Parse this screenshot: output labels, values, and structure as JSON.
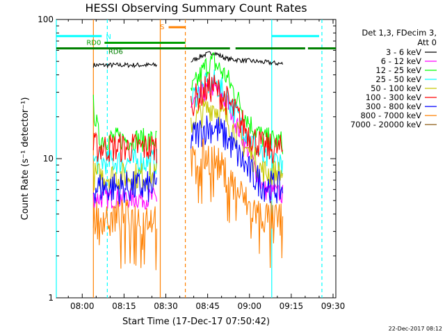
{
  "chart_data": {
    "type": "line",
    "title": "HESSI Observing Summary Count Rates",
    "xlabel": "Start Time (17-Dec-17 07:50:42)",
    "ylabel": "Count Rate (s⁻¹ detector⁻¹)",
    "y_scale": "log",
    "ylim": [
      1,
      100
    ],
    "xlim": [
      "07:50:42",
      "09:31:00"
    ],
    "x_ticks": [
      "08:00",
      "08:15",
      "08:30",
      "08:45",
      "09:00",
      "09:15",
      "09:30"
    ],
    "y_ticks": [
      "1",
      "10",
      "100"
    ],
    "legend": {
      "placement": "right",
      "header": "Det 1,3, FDecim 3,",
      "header2": "Att 0",
      "entries": [
        {
          "label": "3 - 6 keV",
          "color": "#000000"
        },
        {
          "label": "6 - 12 keV",
          "color": "#ff00ff"
        },
        {
          "label": "12 - 25 keV",
          "color": "#00ff00"
        },
        {
          "label": "25 - 50 keV",
          "color": "#00ffff"
        },
        {
          "label": "50 - 100 keV",
          "color": "#c8c800"
        },
        {
          "label": "100 - 300 keV",
          "color": "#ff0000"
        },
        {
          "label": "300 - 800 keV",
          "color": "#0000ff"
        },
        {
          "label": "800 - 7000 keV",
          "color": "#ff8000"
        },
        {
          "label": "7000 - 20000 keV",
          "color": "#8b5a14"
        }
      ]
    },
    "series": [
      {
        "name": "3 - 6 keV",
        "color": "#000000",
        "segments": [
          {
            "x": [
              "08:04",
              "08:27"
            ],
            "y": [
              47,
              47
            ]
          },
          {
            "x": [
              "08:39",
              "08:43",
              "08:47",
              "08:52",
              "09:12"
            ],
            "y": [
              50,
              55,
              58,
              52,
              48
            ]
          }
        ]
      },
      {
        "name": "6 - 12 keV",
        "color": "#ff00ff",
        "segments": [
          {
            "x": [
              "08:04",
              "08:27"
            ],
            "y": [
              5.2,
              5.2
            ]
          },
          {
            "x": [
              "08:39",
              "08:44",
              "08:47",
              "08:52",
              "09:00",
              "09:05",
              "09:12"
            ],
            "y": [
              24,
              30,
              33,
              25,
              11,
              6,
              5.5
            ]
          }
        ]
      },
      {
        "name": "12 - 25 keV",
        "color": "#00ff00",
        "segments": [
          {
            "x": [
              "08:04",
              "08:06",
              "08:27"
            ],
            "y": [
              24,
              14,
              13.5
            ]
          },
          {
            "x": [
              "08:39",
              "08:44",
              "08:47",
              "08:52",
              "09:00",
              "09:05",
              "09:12"
            ],
            "y": [
              30,
              45,
              50,
              38,
              18,
              14,
              13
            ]
          }
        ]
      },
      {
        "name": "25 - 50 keV",
        "color": "#00ffff",
        "segments": [
          {
            "x": [
              "08:04",
              "08:27"
            ],
            "y": [
              9.5,
              9.5
            ]
          },
          {
            "x": [
              "08:39",
              "08:44",
              "08:47",
              "08:52",
              "09:00",
              "09:05",
              "09:12"
            ],
            "y": [
              27,
              33,
              36,
              28,
              14,
              10,
              9.5
            ]
          }
        ]
      },
      {
        "name": "50 - 100 keV",
        "color": "#c8c800",
        "segments": [
          {
            "x": [
              "08:04",
              "08:27"
            ],
            "y": [
              7.5,
              7.5
            ]
          },
          {
            "x": [
              "08:39",
              "08:44",
              "08:47",
              "08:52",
              "09:00",
              "09:05",
              "09:12"
            ],
            "y": [
              18,
              22,
              24,
              19,
              11,
              8,
              7.8
            ]
          }
        ]
      },
      {
        "name": "100 - 300 keV",
        "color": "#ff0000",
        "segments": [
          {
            "x": [
              "08:04",
              "08:27"
            ],
            "y": [
              12,
              12
            ]
          },
          {
            "x": [
              "08:39",
              "08:44",
              "08:47",
              "08:52",
              "09:00",
              "09:05",
              "09:12"
            ],
            "y": [
              25,
              31,
              33,
              26,
              15,
              12,
              11.5
            ]
          }
        ]
      },
      {
        "name": "300 - 800 keV",
        "color": "#0000ff",
        "segments": [
          {
            "x": [
              "08:04",
              "08:27"
            ],
            "y": [
              6.2,
              6.2
            ]
          },
          {
            "x": [
              "08:39",
              "08:44",
              "08:47",
              "08:52",
              "09:00",
              "09:05",
              "09:12"
            ],
            "y": [
              14,
              16.5,
              17,
              14,
              8,
              6.5,
              6
            ]
          }
        ]
      },
      {
        "name": "800 - 7000 keV",
        "color": "#ff8000",
        "segments": [
          {
            "x": [
              "08:04",
              "08:27"
            ],
            "y": [
              3.8,
              3.8
            ]
          },
          {
            "x": [
              "08:39",
              "08:44",
              "08:47",
              "08:52",
              "09:00",
              "09:05",
              "09:12"
            ],
            "y": [
              9.2,
              10.5,
              10,
              7.5,
              4.5,
              3.8,
              3.6
            ]
          }
        ]
      },
      {
        "name": "7000 - 20000 keV",
        "color": "#8b5a14",
        "segments": []
      }
    ],
    "flags": [
      {
        "label": "N",
        "color": "#00ffff",
        "y": 76,
        "segments": [
          [
            "07:50:42",
            "08:07"
          ],
          [
            "09:08",
            "09:25"
          ]
        ]
      },
      {
        "label": "S",
        "color": "#ff8000",
        "y": 88,
        "segments": [
          [
            "08:31",
            "08:37"
          ]
        ]
      },
      {
        "label": "RD0",
        "color": "#00a000",
        "y": 68,
        "segments": [
          [
            "08:08",
            "08:37"
          ]
        ]
      },
      {
        "label": "RD6",
        "color": "#008000",
        "y": 62,
        "segments": [
          [
            "07:50:42",
            "08:37"
          ],
          [
            "08:37",
            "08:53"
          ],
          [
            "08:55",
            "09:20"
          ],
          [
            "09:21",
            "09:31"
          ]
        ]
      }
    ],
    "vertical_markers": [
      {
        "x": "07:50:42",
        "color": "#00ffff",
        "style": "solid"
      },
      {
        "x": "08:09",
        "color": "#00ffff",
        "style": "dashed"
      },
      {
        "x": "08:04",
        "color": "#ff8000",
        "style": "solid"
      },
      {
        "x": "08:28",
        "color": "#ff8000",
        "style": "solid"
      },
      {
        "x": "08:37",
        "color": "#ff8000",
        "style": "dashed"
      },
      {
        "x": "09:08",
        "color": "#00ffff",
        "style": "solid"
      },
      {
        "x": "09:26",
        "color": "#00ffff",
        "style": "dashed"
      }
    ]
  },
  "timestamp": "22-Dec-2017 08:12"
}
